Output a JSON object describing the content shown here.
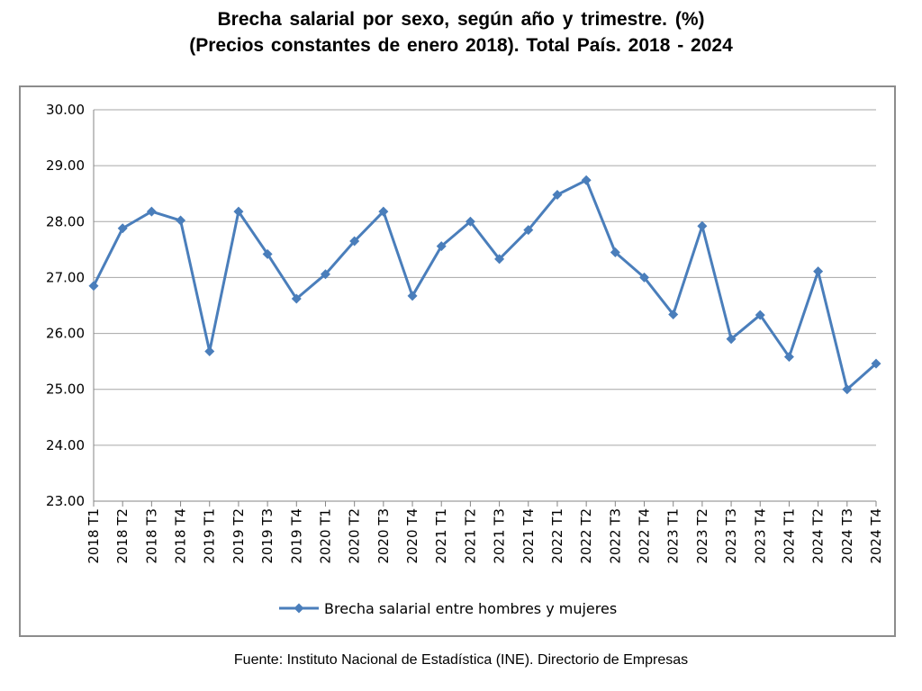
{
  "chart_data": {
    "type": "line",
    "title": "Brecha salarial por sexo, según año y trimestre. (%)",
    "subtitle": "(Precios constantes de enero 2018). Total País. 2018 - 2024",
    "xlabel": "",
    "ylabel": "",
    "ylim": [
      23,
      30
    ],
    "yticks": [
      "23.00",
      "24.00",
      "25.00",
      "26.00",
      "27.00",
      "28.00",
      "29.00",
      "30.00"
    ],
    "grid": true,
    "legend_position": "bottom",
    "categories": [
      "2018 T1",
      "2018 T2",
      "2018 T3",
      "2018 T4",
      "2019 T1",
      "2019 T2",
      "2019 T3",
      "2019 T4",
      "2020 T1",
      "2020 T2",
      "2020 T3",
      "2020 T4",
      "2021 T1",
      "2021 T2",
      "2021 T3",
      "2021 T4",
      "2022 T1",
      "2022 T2",
      "2022 T3",
      "2022 T4",
      "2023 T1",
      "2023 T2",
      "2023 T3",
      "2023 T4",
      "2024 T1",
      "2024 T2",
      "2024 T3",
      "2024 T4"
    ],
    "series": [
      {
        "name": "Brecha salarial entre hombres y mujeres",
        "color": "#4a7ebb",
        "values": [
          26.85,
          27.88,
          28.18,
          28.02,
          25.68,
          28.18,
          27.42,
          26.62,
          27.06,
          27.65,
          28.18,
          26.67,
          27.56,
          28.0,
          27.33,
          27.85,
          28.48,
          28.74,
          27.45,
          27.0,
          26.34,
          27.92,
          25.9,
          26.33,
          25.58,
          27.11,
          25.0,
          25.46
        ]
      }
    ]
  },
  "source": "Fuente: Instituto Nacional de Estadística (INE). Directorio de Empresas"
}
